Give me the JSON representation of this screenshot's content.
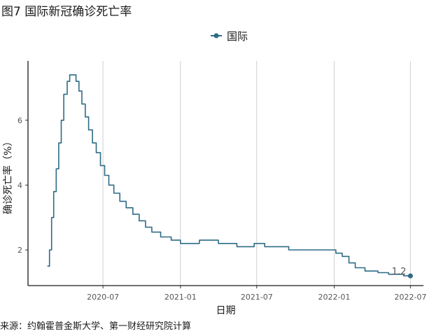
{
  "chart_data": {
    "type": "line",
    "title": "图7 国际新冠确诊死亡率",
    "xlabel": "日期",
    "ylabel": "确诊死亡率（%）",
    "source": "来源：约翰霍普金斯大学、第一财经研究院计算",
    "x_tick_labels": [
      "2020-07",
      "2021-01",
      "2021-07",
      "2022-01",
      "2022-07"
    ],
    "x_tick_dates": [
      "2020-07-01",
      "2021-01-01",
      "2021-07-01",
      "2022-01-01",
      "2022-07-01"
    ],
    "y_ticks": [
      2,
      4,
      6
    ],
    "ylim": [
      0.9,
      7.7
    ],
    "xlim": [
      "2020-01-05",
      "2022-08-01"
    ],
    "grid": "vertical",
    "legend_position": "top",
    "end_label": "1.2",
    "color": "#2e6b86",
    "series": [
      {
        "name": "国际",
        "points": [
          [
            "2020-02-20",
            1.5
          ],
          [
            "2020-02-25",
            2.0
          ],
          [
            "2020-03-01",
            3.0
          ],
          [
            "2020-03-06",
            3.8
          ],
          [
            "2020-03-12",
            4.5
          ],
          [
            "2020-03-18",
            5.3
          ],
          [
            "2020-03-24",
            6.0
          ],
          [
            "2020-03-30",
            6.8
          ],
          [
            "2020-04-07",
            7.2
          ],
          [
            "2020-04-13",
            7.4
          ],
          [
            "2020-04-22",
            7.4
          ],
          [
            "2020-04-28",
            7.2
          ],
          [
            "2020-05-05",
            6.9
          ],
          [
            "2020-05-12",
            6.5
          ],
          [
            "2020-05-20",
            6.1
          ],
          [
            "2020-05-28",
            5.7
          ],
          [
            "2020-06-06",
            5.3
          ],
          [
            "2020-06-15",
            5.0
          ],
          [
            "2020-06-25",
            4.6
          ],
          [
            "2020-07-05",
            4.3
          ],
          [
            "2020-07-15",
            4.0
          ],
          [
            "2020-07-27",
            3.75
          ],
          [
            "2020-08-10",
            3.5
          ],
          [
            "2020-08-25",
            3.3
          ],
          [
            "2020-09-10",
            3.1
          ],
          [
            "2020-09-25",
            2.9
          ],
          [
            "2020-10-10",
            2.7
          ],
          [
            "2020-10-25",
            2.55
          ],
          [
            "2020-11-15",
            2.4
          ],
          [
            "2020-12-10",
            2.3
          ],
          [
            "2021-01-01",
            2.2
          ],
          [
            "2021-02-01",
            2.2
          ],
          [
            "2021-02-15",
            2.3
          ],
          [
            "2021-03-15",
            2.3
          ],
          [
            "2021-04-01",
            2.2
          ],
          [
            "2021-05-01",
            2.2
          ],
          [
            "2021-05-15",
            2.1
          ],
          [
            "2021-06-15",
            2.1
          ],
          [
            "2021-06-25",
            2.2
          ],
          [
            "2021-07-15",
            2.2
          ],
          [
            "2021-07-20",
            2.1
          ],
          [
            "2021-09-10",
            2.1
          ],
          [
            "2021-09-15",
            2.0
          ],
          [
            "2021-12-20",
            2.0
          ],
          [
            "2022-01-05",
            1.9
          ],
          [
            "2022-01-20",
            1.8
          ],
          [
            "2022-02-05",
            1.6
          ],
          [
            "2022-02-20",
            1.45
          ],
          [
            "2022-03-15",
            1.35
          ],
          [
            "2022-04-15",
            1.3
          ],
          [
            "2022-05-10",
            1.25
          ],
          [
            "2022-06-15",
            1.2
          ],
          [
            "2022-07-01",
            1.2
          ]
        ]
      }
    ]
  }
}
